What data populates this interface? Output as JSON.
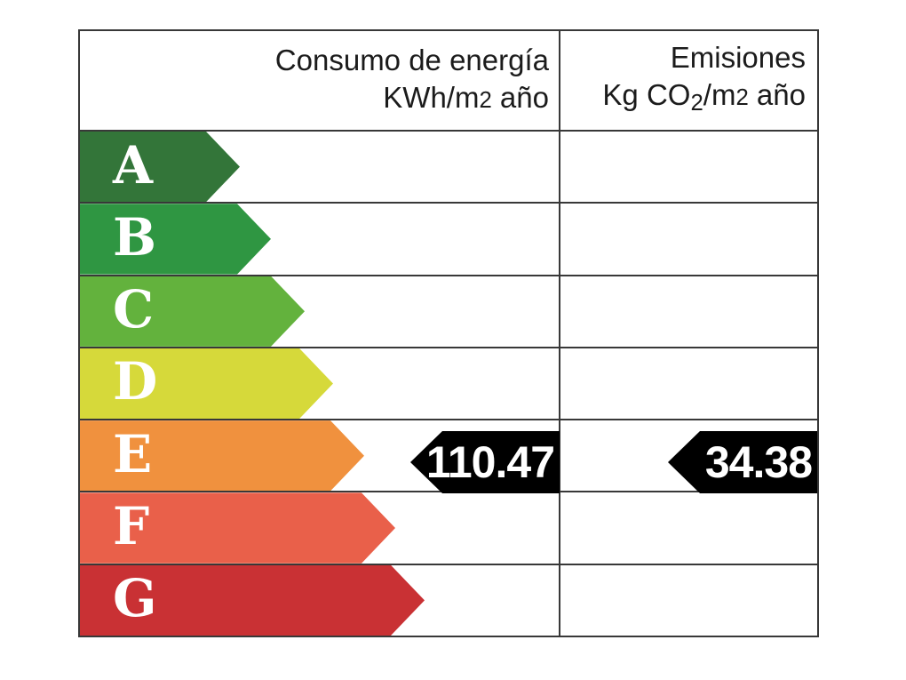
{
  "header": {
    "consumption_line1": "Consumo de energía",
    "consumption_line2_prefix": "KWh/m",
    "consumption_line2_exp": "2",
    "consumption_line2_suffix": " año",
    "emissions_line1": "Emisiones",
    "emissions_line2_prefix": "Kg CO",
    "emissions_line2_sub": "2",
    "emissions_line2_mid": "/m",
    "emissions_line2_exp": "2",
    "emissions_line2_suffix": " año"
  },
  "ratings": [
    {
      "letter": "A",
      "color": "#337539",
      "arrow_width": 180
    },
    {
      "letter": "B",
      "color": "#2f9642",
      "arrow_width": 215
    },
    {
      "letter": "C",
      "color": "#63b23d",
      "arrow_width": 253
    },
    {
      "letter": "D",
      "color": "#d6d93a",
      "arrow_width": 285
    },
    {
      "letter": "E",
      "color": "#f0913e",
      "arrow_width": 320
    },
    {
      "letter": "F",
      "color": "#e9604a",
      "arrow_width": 355
    },
    {
      "letter": "G",
      "color": "#c93134",
      "arrow_width": 388
    }
  ],
  "indicators": {
    "rating_row": "E",
    "consumption_value": "110.47",
    "emissions_value": "34.38",
    "arrow_color": "#000000",
    "value_text_color": "#ffffff"
  },
  "border_color": "#383838",
  "chart_data": {
    "type": "table",
    "categories": [
      "A",
      "B",
      "C",
      "D",
      "E",
      "F",
      "G"
    ],
    "columns": [
      "Consumo de energía KWh/m2 año",
      "Emisiones Kg CO2/m2 año"
    ],
    "current_rating": "E",
    "consumo_kwh_m2_ano": 110.47,
    "emisiones_kg_co2_m2_ano": 34.38,
    "scale_colors": [
      "#337539",
      "#2f9642",
      "#63b23d",
      "#d6d93a",
      "#f0913e",
      "#e9604a",
      "#c93134"
    ],
    "title": "",
    "legend_position": "none",
    "grid": true
  }
}
